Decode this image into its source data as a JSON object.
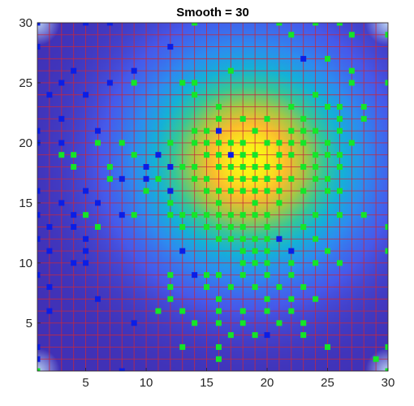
{
  "chart_data": {
    "type": "heatmap",
    "title": "Smooth = 30",
    "xlabel": "",
    "ylabel": "",
    "xlim": [
      1,
      30
    ],
    "ylim": [
      1,
      30
    ],
    "xticks": [
      5,
      10,
      15,
      20,
      25,
      30
    ],
    "yticks": [
      5,
      10,
      15,
      20,
      25,
      30
    ],
    "grid": true,
    "grid_step": 1,
    "colormap": "parula",
    "surface": {
      "peak": [
        18.5,
        18.5
      ],
      "spread": 6,
      "min": 0.0,
      "max": 1.0,
      "edge_corner_highlight": true
    },
    "colors": {
      "grid_line": "#c8283c",
      "marker_blue": "#0a1ee6",
      "marker_green": "#14e628",
      "axis": "#262626"
    },
    "series": [
      {
        "points": [
          [
            1,
            30
          ],
          [
            5,
            30
          ],
          [
            7,
            30
          ],
          [
            1,
            28
          ],
          [
            12,
            28
          ],
          [
            4,
            26
          ],
          [
            9,
            26
          ],
          [
            3,
            25
          ],
          [
            7,
            25
          ],
          [
            5,
            24
          ],
          [
            2,
            24
          ],
          [
            3,
            22
          ],
          [
            1,
            21
          ],
          [
            6,
            21
          ],
          [
            1,
            20
          ],
          [
            3,
            20
          ],
          [
            12,
            18
          ],
          [
            10,
            18
          ],
          [
            8,
            17
          ],
          [
            10,
            17
          ],
          [
            12,
            16
          ],
          [
            5,
            16
          ],
          [
            1,
            16
          ],
          [
            3,
            15
          ],
          [
            6,
            15
          ],
          [
            1,
            14
          ],
          [
            4,
            14
          ],
          [
            8,
            14
          ],
          [
            2,
            13
          ],
          [
            4,
            13
          ],
          [
            1,
            12
          ],
          [
            5,
            12
          ],
          [
            2,
            11
          ],
          [
            4,
            10
          ],
          [
            5,
            11
          ],
          [
            5,
            10
          ],
          [
            1,
            9
          ],
          [
            2,
            8
          ],
          [
            6,
            7
          ],
          [
            2,
            6
          ],
          [
            9,
            5
          ],
          [
            1,
            3
          ],
          [
            1,
            2
          ],
          [
            1,
            1
          ],
          [
            8,
            1
          ],
          [
            20,
            17
          ],
          [
            16,
            21
          ],
          [
            17,
            19
          ],
          [
            21,
            12
          ],
          [
            22,
            11
          ],
          [
            13,
            11
          ],
          [
            14,
            9
          ],
          [
            21,
            8
          ],
          [
            18,
            5
          ],
          [
            20,
            4
          ],
          [
            23,
            27
          ],
          [
            11,
            19
          ]
        ]
      },
      {
        "points": [
          [
            14,
            30
          ],
          [
            21,
            30
          ],
          [
            24,
            30
          ],
          [
            26,
            30
          ],
          [
            22,
            29
          ],
          [
            27,
            29
          ],
          [
            30,
            29
          ],
          [
            25,
            27
          ],
          [
            17,
            26
          ],
          [
            27,
            26
          ],
          [
            9,
            25
          ],
          [
            13,
            25
          ],
          [
            14,
            25
          ],
          [
            27,
            25
          ],
          [
            30,
            25
          ],
          [
            14,
            24
          ],
          [
            24,
            24
          ],
          [
            16,
            23
          ],
          [
            22,
            23
          ],
          [
            25,
            23
          ],
          [
            26,
            23
          ],
          [
            28,
            23
          ],
          [
            16,
            22
          ],
          [
            18,
            22
          ],
          [
            20,
            22
          ],
          [
            23,
            22
          ],
          [
            28,
            22
          ],
          [
            14,
            21
          ],
          [
            15,
            21
          ],
          [
            19,
            21
          ],
          [
            22,
            21
          ],
          [
            23,
            21
          ],
          [
            24,
            21
          ],
          [
            26,
            21
          ],
          [
            6,
            20
          ],
          [
            8,
            20
          ],
          [
            12,
            20
          ],
          [
            14,
            20
          ],
          [
            15,
            20
          ],
          [
            16,
            20
          ],
          [
            17,
            20
          ],
          [
            18,
            20
          ],
          [
            20,
            20
          ],
          [
            21,
            20
          ],
          [
            22,
            20
          ],
          [
            23,
            20
          ],
          [
            25,
            20
          ],
          [
            27,
            20
          ],
          [
            3,
            19
          ],
          [
            4,
            19
          ],
          [
            9,
            19
          ],
          [
            15,
            19
          ],
          [
            16,
            19
          ],
          [
            18,
            19
          ],
          [
            19,
            19
          ],
          [
            21,
            19
          ],
          [
            22,
            19
          ],
          [
            24,
            19
          ],
          [
            25,
            19
          ],
          [
            26,
            19
          ],
          [
            4,
            18
          ],
          [
            7,
            18
          ],
          [
            13,
            18
          ],
          [
            14,
            18
          ],
          [
            16,
            18
          ],
          [
            17,
            18
          ],
          [
            18,
            18
          ],
          [
            19,
            18
          ],
          [
            20,
            18
          ],
          [
            21,
            18
          ],
          [
            23,
            18
          ],
          [
            24,
            18
          ],
          [
            26,
            18
          ],
          [
            7,
            17
          ],
          [
            11,
            17
          ],
          [
            14,
            17
          ],
          [
            15,
            17
          ],
          [
            17,
            17
          ],
          [
            18,
            17
          ],
          [
            19,
            17
          ],
          [
            20,
            17
          ],
          [
            21,
            17
          ],
          [
            22,
            17
          ],
          [
            24,
            17
          ],
          [
            25,
            17
          ],
          [
            15,
            16
          ],
          [
            16,
            16
          ],
          [
            17,
            16
          ],
          [
            18,
            16
          ],
          [
            19,
            16
          ],
          [
            20,
            16
          ],
          [
            21,
            16
          ],
          [
            23,
            16
          ],
          [
            25,
            16
          ],
          [
            26,
            16
          ],
          [
            9,
            14
          ],
          [
            12,
            14
          ],
          [
            13,
            14
          ],
          [
            14,
            14
          ],
          [
            15,
            14
          ],
          [
            16,
            14
          ],
          [
            17,
            14
          ],
          [
            18,
            14
          ],
          [
            19,
            14
          ],
          [
            20,
            14
          ],
          [
            24,
            14
          ],
          [
            26,
            14
          ],
          [
            28,
            14
          ],
          [
            13,
            13
          ],
          [
            15,
            13
          ],
          [
            16,
            13
          ],
          [
            17,
            13
          ],
          [
            18,
            13
          ],
          [
            20,
            13
          ],
          [
            23,
            13
          ],
          [
            30,
            13
          ],
          [
            16,
            12
          ],
          [
            17,
            12
          ],
          [
            18,
            12
          ],
          [
            19,
            12
          ],
          [
            20,
            12
          ],
          [
            24,
            12
          ],
          [
            18,
            11
          ],
          [
            19,
            11
          ],
          [
            20,
            11
          ],
          [
            25,
            11
          ],
          [
            30,
            11
          ],
          [
            18,
            10
          ],
          [
            19,
            10
          ],
          [
            20,
            10
          ],
          [
            22,
            10
          ],
          [
            24,
            10
          ],
          [
            26,
            10
          ],
          [
            12,
            9
          ],
          [
            16,
            9
          ],
          [
            18,
            9
          ],
          [
            20,
            9
          ],
          [
            22,
            9
          ],
          [
            15,
            8
          ],
          [
            17,
            8
          ],
          [
            19,
            8
          ],
          [
            21,
            8
          ],
          [
            23,
            8
          ],
          [
            12,
            7
          ],
          [
            16,
            7
          ],
          [
            20,
            7
          ],
          [
            22,
            7
          ],
          [
            24,
            7
          ],
          [
            11,
            6
          ],
          [
            13,
            6
          ],
          [
            16,
            6
          ],
          [
            18,
            6
          ],
          [
            20,
            6
          ],
          [
            22,
            6
          ],
          [
            14,
            5
          ],
          [
            16,
            5
          ],
          [
            18,
            5
          ],
          [
            21,
            5
          ],
          [
            23,
            5
          ],
          [
            17,
            4
          ],
          [
            19,
            4
          ],
          [
            13,
            3
          ],
          [
            16,
            3
          ],
          [
            25,
            3
          ],
          [
            30,
            3
          ],
          [
            16,
            2
          ],
          [
            29,
            2
          ],
          [
            1,
            1
          ],
          [
            30,
            1
          ],
          [
            12,
            8
          ],
          [
            15,
            9
          ],
          [
            16,
            15
          ],
          [
            10,
            16
          ],
          [
            12,
            15
          ],
          [
            6,
            13
          ],
          [
            5,
            14
          ],
          [
            19,
            15
          ],
          [
            21,
            15
          ],
          [
            26,
            22
          ],
          [
            23,
            4
          ]
        ]
      }
    ]
  }
}
